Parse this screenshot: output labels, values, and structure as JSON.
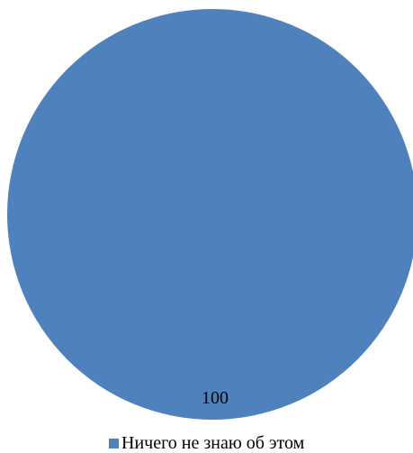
{
  "chart_data": {
    "type": "pie",
    "slices": [
      {
        "label": "Ничего не знаю об этом",
        "value": 100,
        "color": "#4F81BD"
      }
    ],
    "data_labels": [
      "100"
    ],
    "legend": {
      "position": "bottom",
      "entries": [
        "Ничего не знаю об этом"
      ]
    }
  }
}
